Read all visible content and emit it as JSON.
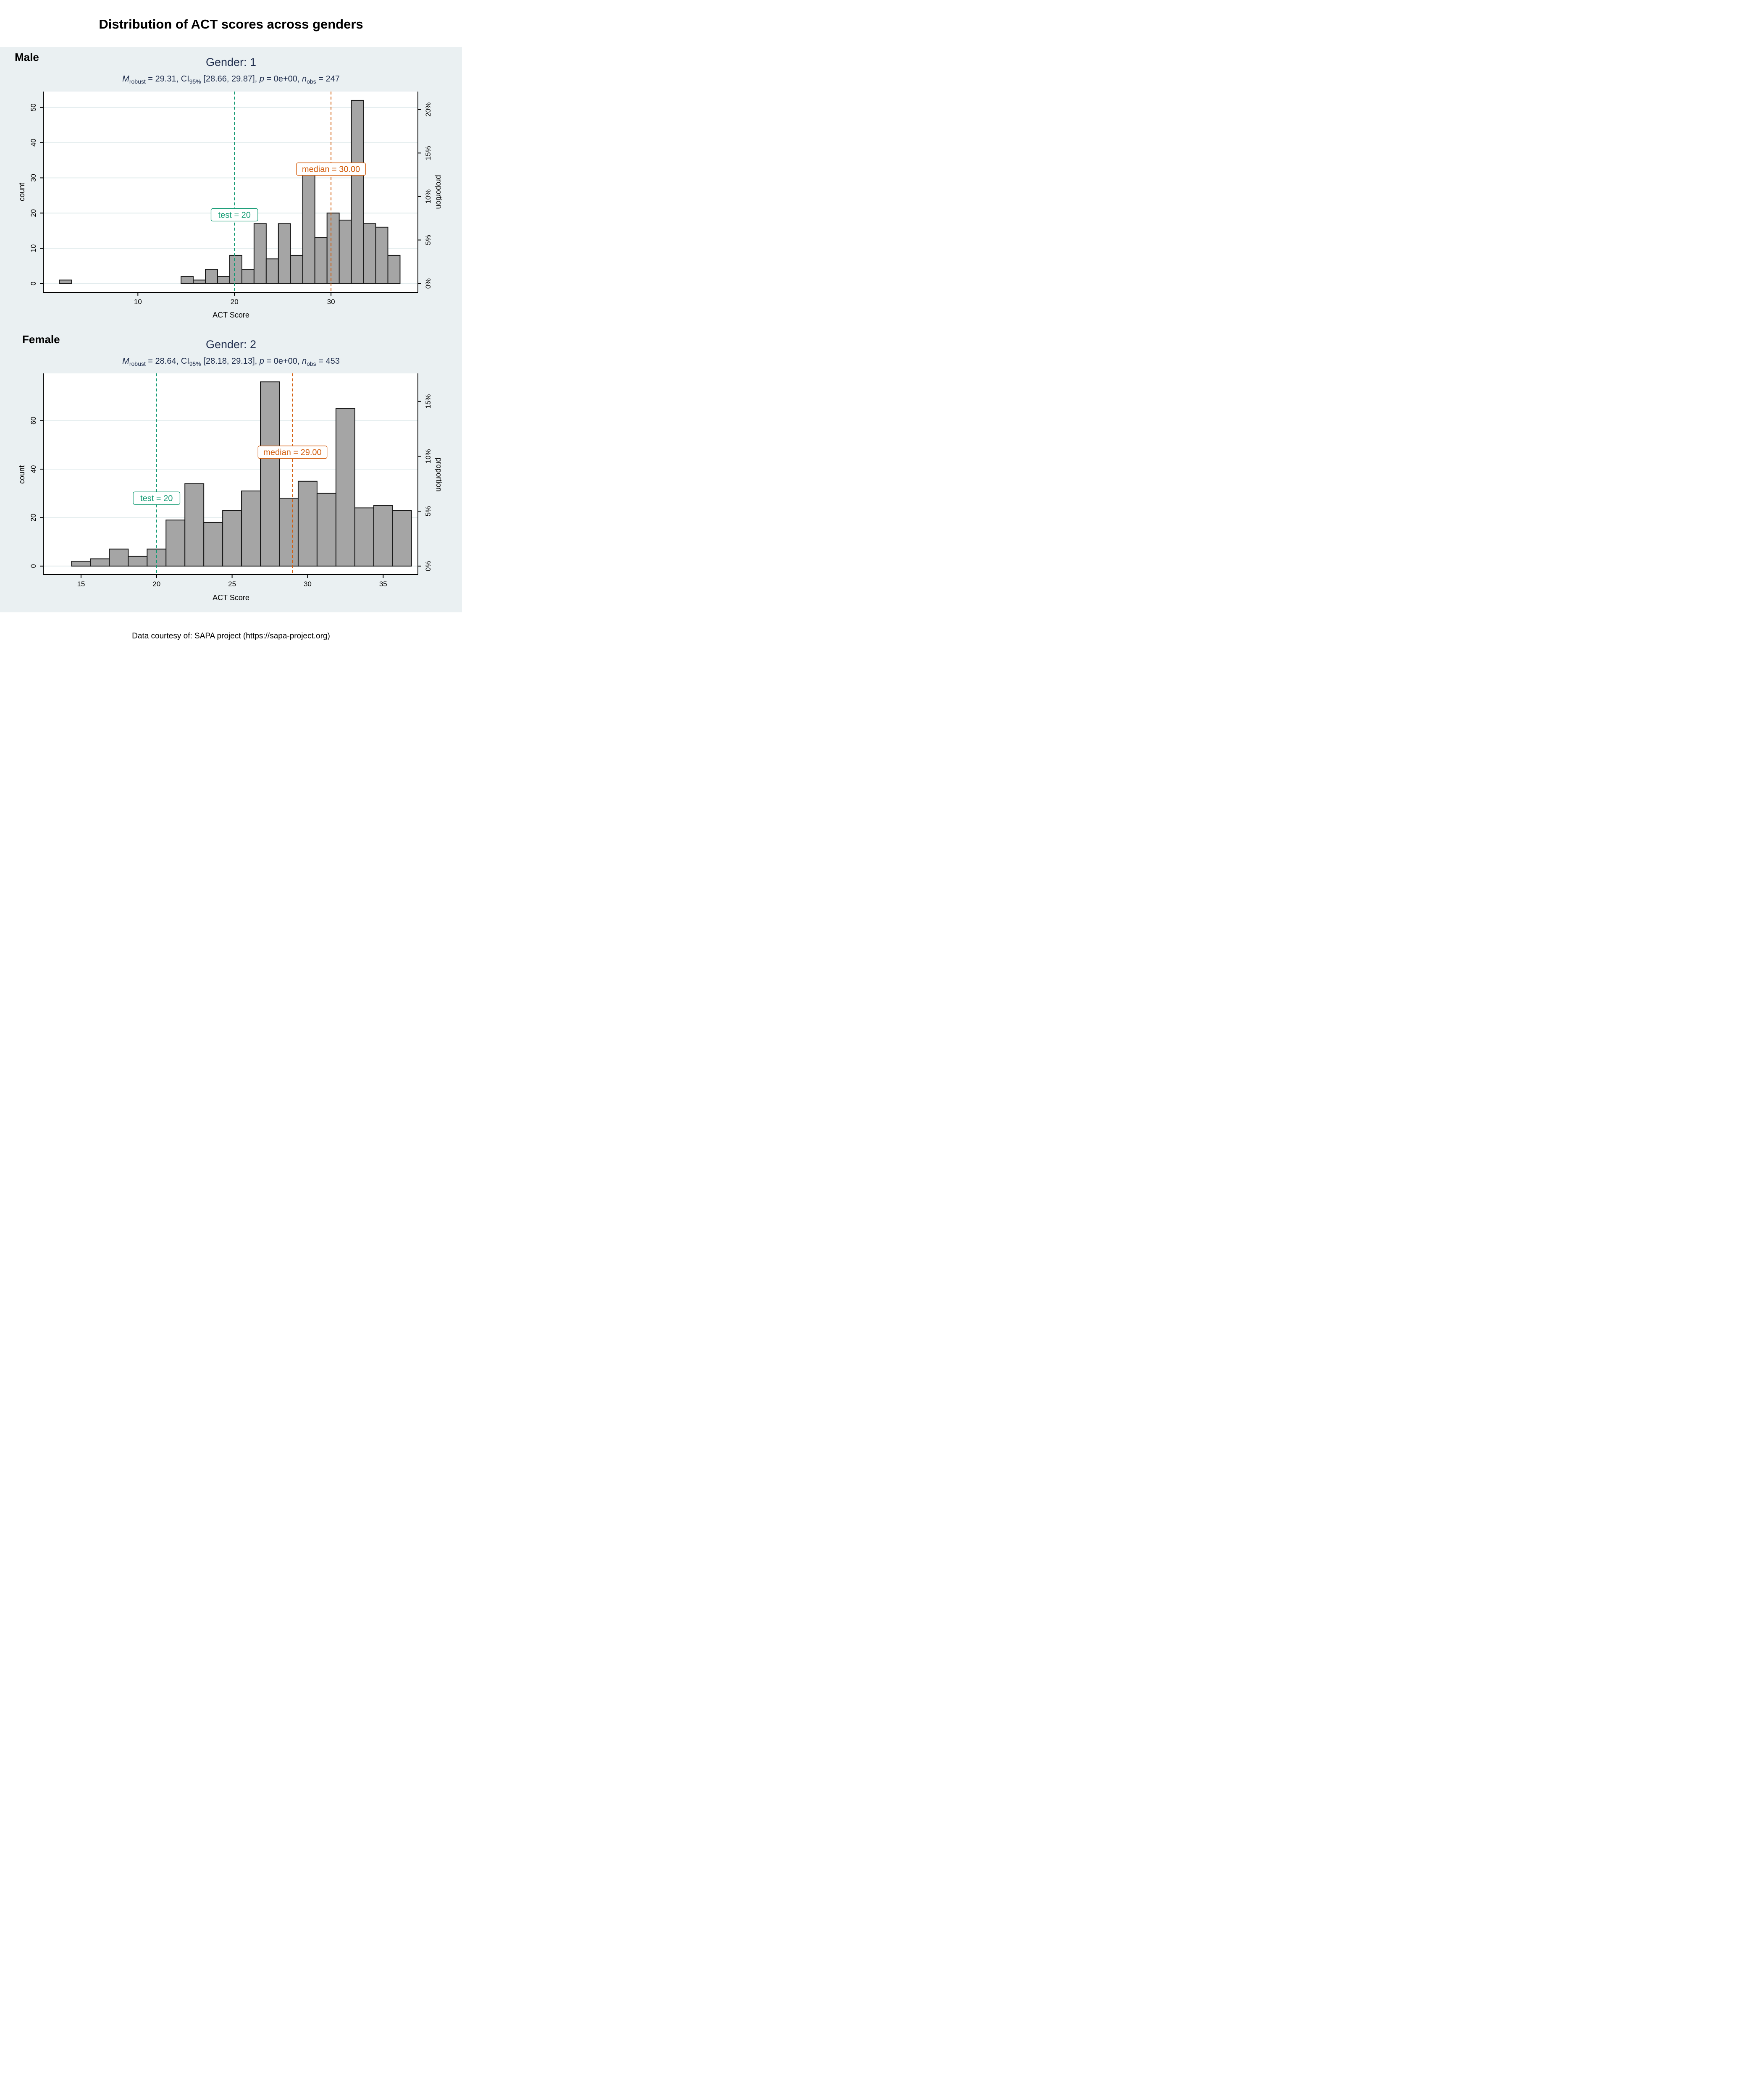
{
  "title": "Distribution of ACT scores across genders",
  "caption": "Data courtesy of: SAPA project (https://sapa-project.org)",
  "colors": {
    "panel_background": "#eaf0f2",
    "bar_fill": "#a5a5a5",
    "bar_stroke": "#1a1a1a",
    "test_line": "#119a72",
    "median_line": "#d35d0c",
    "grid": "#e3ecee",
    "subtitle_text": "#1f2d4d"
  },
  "chart_data": [
    {
      "type": "bar",
      "panel_tag": "Male",
      "title": "Gender: 1",
      "subtitle": {
        "m_symbol": "M",
        "m_sub": "robust",
        "m_text": " = 29.31, CI",
        "ci_sub": "95%",
        "ci_text": " [28.66, 29.87], ",
        "p_symbol": "p",
        "p_text": " = 0e+00, ",
        "n_symbol": "n",
        "n_sub": "obs",
        "n_text": " = 247"
      },
      "xlabel": "ACT Score",
      "ylabel": "count",
      "y2label": "proportion",
      "xlim": [
        0.2,
        39.0
      ],
      "ylim": [
        -2.5,
        54.5
      ],
      "xticks": [
        10,
        20,
        30
      ],
      "yticks": [
        0,
        10,
        20,
        30,
        40,
        50
      ],
      "y2ticks": [
        "0%",
        "5%",
        "10%",
        "15%",
        "20%"
      ],
      "y2tick_values": [
        0,
        0.05,
        0.1,
        0.15,
        0.2
      ],
      "n_obs": 247,
      "bin_width": 1.26,
      "bins": [
        {
          "x": 2.5,
          "count": 1
        },
        {
          "x": 15.1,
          "count": 2
        },
        {
          "x": 16.36,
          "count": 1
        },
        {
          "x": 17.62,
          "count": 4
        },
        {
          "x": 18.88,
          "count": 2
        },
        {
          "x": 20.14,
          "count": 8
        },
        {
          "x": 21.4,
          "count": 4
        },
        {
          "x": 22.66,
          "count": 17
        },
        {
          "x": 23.92,
          "count": 7
        },
        {
          "x": 25.18,
          "count": 17
        },
        {
          "x": 26.44,
          "count": 8
        },
        {
          "x": 27.7,
          "count": 31
        },
        {
          "x": 28.96,
          "count": 13
        },
        {
          "x": 30.22,
          "count": 20
        },
        {
          "x": 31.48,
          "count": 18
        },
        {
          "x": 32.74,
          "count": 52
        },
        {
          "x": 34.0,
          "count": 17
        },
        {
          "x": 35.26,
          "count": 16
        },
        {
          "x": 36.52,
          "count": 8
        }
      ],
      "test_value": 20,
      "test_label": "test = 20",
      "test_label_y": 19.5,
      "median_value": 30.0,
      "median_label": "median = 30.00",
      "median_label_y": 32.5
    },
    {
      "type": "bar",
      "panel_tag": "Female",
      "title": "Gender: 2",
      "subtitle": {
        "m_symbol": "M",
        "m_sub": "robust",
        "m_text": " = 28.64, CI",
        "ci_sub": "95%",
        "ci_text": " [28.18, 29.13], ",
        "p_symbol": "p",
        "p_text": " = 0e+00, ",
        "n_symbol": "n",
        "n_sub": "obs",
        "n_text": " = 453"
      },
      "xlabel": "ACT Score",
      "ylabel": "count",
      "y2label": "proportion",
      "xlim": [
        12.5,
        37.3
      ],
      "ylim": [
        -3.5,
        79.5
      ],
      "xticks": [
        15,
        20,
        25,
        30,
        35
      ],
      "yticks": [
        0,
        20,
        40,
        60
      ],
      "y2ticks": [
        "0%",
        "5%",
        "10%",
        "15%"
      ],
      "y2tick_values": [
        0,
        0.05,
        0.1,
        0.15
      ],
      "n_obs": 453,
      "bin_width": 1.25,
      "bins": [
        {
          "x": 15.0,
          "count": 2
        },
        {
          "x": 16.25,
          "count": 3
        },
        {
          "x": 17.5,
          "count": 7
        },
        {
          "x": 18.75,
          "count": 4
        },
        {
          "x": 20.0,
          "count": 7
        },
        {
          "x": 21.25,
          "count": 19
        },
        {
          "x": 22.5,
          "count": 34
        },
        {
          "x": 23.75,
          "count": 18
        },
        {
          "x": 25.0,
          "count": 23
        },
        {
          "x": 26.25,
          "count": 31
        },
        {
          "x": 27.5,
          "count": 76
        },
        {
          "x": 28.75,
          "count": 28
        },
        {
          "x": 30.0,
          "count": 35
        },
        {
          "x": 31.25,
          "count": 30
        },
        {
          "x": 32.5,
          "count": 65
        },
        {
          "x": 33.75,
          "count": 24
        },
        {
          "x": 35.0,
          "count": 25
        },
        {
          "x": 36.25,
          "count": 23
        }
      ],
      "test_value": 20,
      "test_label": "test = 20",
      "test_label_y": 28,
      "median_value": 29.0,
      "median_label": "median = 29.00",
      "median_label_y": 47
    }
  ]
}
